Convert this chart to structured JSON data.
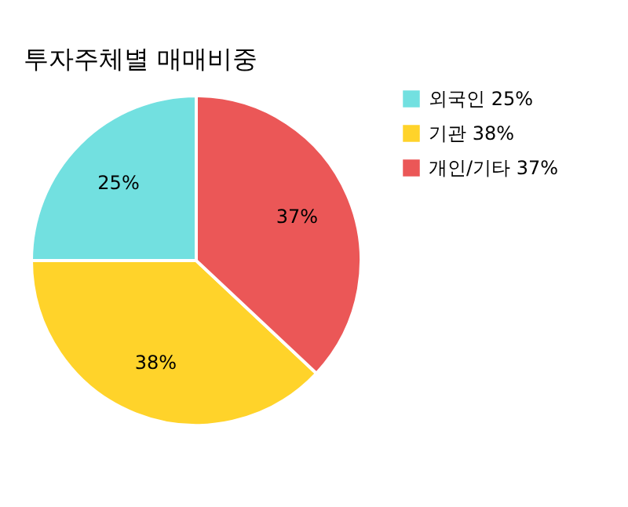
{
  "chart_data": {
    "type": "pie",
    "title": "투자주체별 매매비중",
    "categories": [
      "외국인 25%",
      "기관 38%",
      "개인/기타 37%"
    ],
    "values": [
      25,
      38,
      37
    ],
    "colors": [
      "#72e0e0",
      "#ffd32a",
      "#eb5757"
    ],
    "value_labels": [
      "25%",
      "38%",
      "37%"
    ],
    "legend": "top right"
  }
}
